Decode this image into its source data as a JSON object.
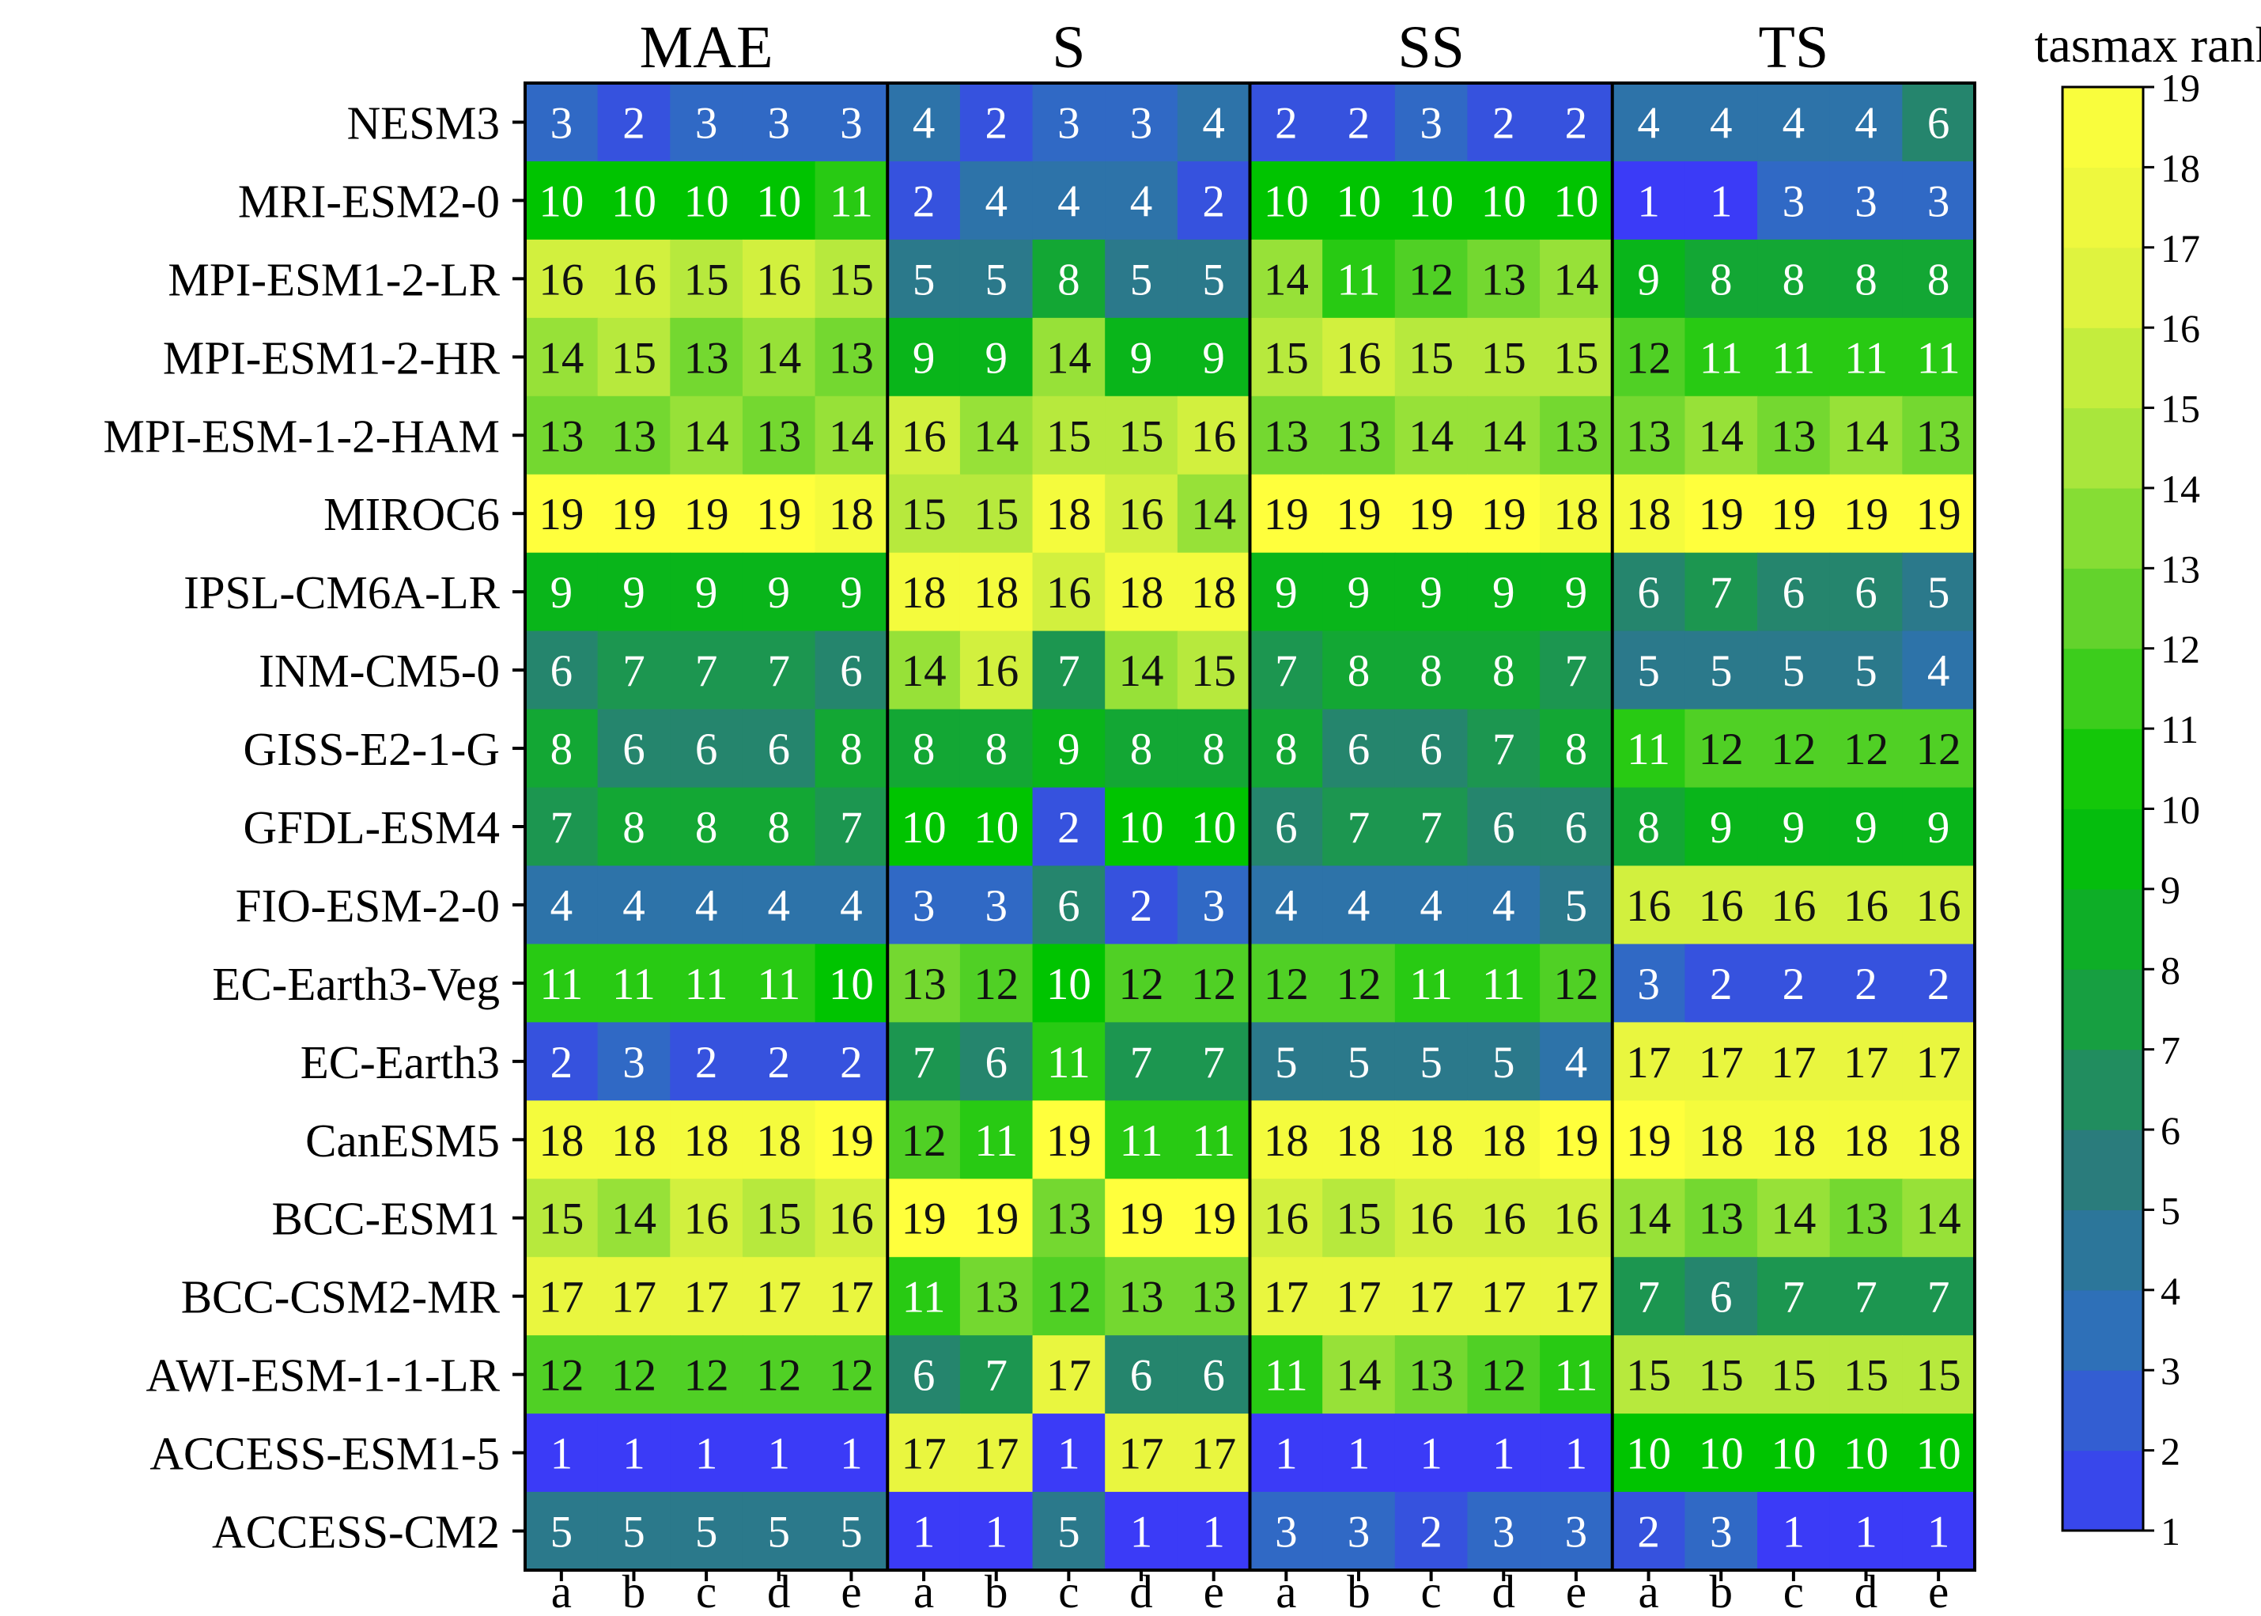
{
  "chart_data": {
    "type": "heatmap",
    "colorbar_label": "tasmax rank",
    "groups": [
      "MAE",
      "S",
      "SS",
      "TS"
    ],
    "sub_columns": [
      "a",
      "b",
      "c",
      "d",
      "e"
    ],
    "models": [
      "NESM3",
      "MRI-ESM2-0",
      "MPI-ESM1-2-LR",
      "MPI-ESM1-2-HR",
      "MPI-ESM-1-2-HAM",
      "MIROC6",
      "IPSL-CM6A-LR",
      "INM-CM5-0",
      "GISS-E2-1-G",
      "GFDL-ESM4",
      "FIO-ESM-2-0",
      "EC-Earth3-Veg",
      "EC-Earth3",
      "CanESM5",
      "BCC-ESM1",
      "BCC-CSM2-MR",
      "AWI-ESM-1-1-LR",
      "ACCESS-ESM1-5",
      "ACCESS-CM2"
    ],
    "values": [
      [
        3,
        2,
        3,
        3,
        3,
        4,
        2,
        3,
        3,
        4,
        2,
        2,
        3,
        2,
        2,
        4,
        4,
        4,
        4,
        6
      ],
      [
        10,
        10,
        10,
        10,
        11,
        2,
        4,
        4,
        4,
        2,
        10,
        10,
        10,
        10,
        10,
        1,
        1,
        3,
        3,
        3
      ],
      [
        16,
        16,
        15,
        16,
        15,
        5,
        5,
        8,
        5,
        5,
        14,
        11,
        12,
        13,
        14,
        9,
        8,
        8,
        8,
        8
      ],
      [
        14,
        15,
        13,
        14,
        13,
        9,
        9,
        14,
        9,
        9,
        15,
        16,
        15,
        15,
        15,
        12,
        11,
        11,
        11,
        11
      ],
      [
        13,
        13,
        14,
        13,
        14,
        16,
        14,
        15,
        15,
        16,
        13,
        13,
        14,
        14,
        13,
        13,
        14,
        13,
        14,
        13
      ],
      [
        19,
        19,
        19,
        19,
        18,
        15,
        15,
        18,
        16,
        14,
        19,
        19,
        19,
        19,
        18,
        18,
        19,
        19,
        19,
        19
      ],
      [
        9,
        9,
        9,
        9,
        9,
        18,
        18,
        16,
        18,
        18,
        9,
        9,
        9,
        9,
        9,
        6,
        7,
        6,
        6,
        5
      ],
      [
        6,
        7,
        7,
        7,
        6,
        14,
        16,
        7,
        14,
        15,
        7,
        8,
        8,
        8,
        7,
        5,
        5,
        5,
        5,
        4
      ],
      [
        8,
        6,
        6,
        6,
        8,
        8,
        8,
        9,
        8,
        8,
        8,
        6,
        6,
        7,
        8,
        11,
        12,
        12,
        12,
        12
      ],
      [
        7,
        8,
        8,
        8,
        7,
        10,
        10,
        2,
        10,
        10,
        6,
        7,
        7,
        6,
        6,
        8,
        9,
        9,
        9,
        9
      ],
      [
        4,
        4,
        4,
        4,
        4,
        3,
        3,
        6,
        2,
        3,
        4,
        4,
        4,
        4,
        5,
        16,
        16,
        16,
        16,
        16
      ],
      [
        11,
        11,
        11,
        11,
        10,
        13,
        12,
        10,
        12,
        12,
        12,
        12,
        11,
        11,
        12,
        3,
        2,
        2,
        2,
        2
      ],
      [
        2,
        3,
        2,
        2,
        2,
        7,
        6,
        11,
        7,
        7,
        5,
        5,
        5,
        5,
        4,
        17,
        17,
        17,
        17,
        17
      ],
      [
        18,
        18,
        18,
        18,
        19,
        12,
        11,
        19,
        11,
        11,
        18,
        18,
        18,
        18,
        19,
        19,
        18,
        18,
        18,
        18
      ],
      [
        15,
        14,
        16,
        15,
        16,
        19,
        19,
        13,
        19,
        19,
        16,
        15,
        16,
        16,
        16,
        14,
        13,
        14,
        13,
        14
      ],
      [
        17,
        17,
        17,
        17,
        17,
        11,
        13,
        12,
        13,
        13,
        17,
        17,
        17,
        17,
        17,
        7,
        6,
        7,
        7,
        7
      ],
      [
        12,
        12,
        12,
        12,
        12,
        6,
        7,
        17,
        6,
        6,
        11,
        14,
        13,
        12,
        11,
        15,
        15,
        15,
        15,
        15
      ],
      [
        1,
        1,
        1,
        1,
        1,
        17,
        17,
        1,
        17,
        17,
        1,
        1,
        1,
        1,
        1,
        10,
        10,
        10,
        10,
        10
      ],
      [
        5,
        5,
        5,
        5,
        5,
        1,
        1,
        5,
        1,
        1,
        3,
        3,
        2,
        3,
        3,
        2,
        3,
        1,
        1,
        1
      ]
    ],
    "colorbar_ticks": [
      1,
      2,
      3,
      4,
      5,
      6,
      7,
      8,
      9,
      10,
      11,
      12,
      13,
      14,
      15,
      16,
      17,
      18,
      19
    ],
    "value_range": [
      1,
      19
    ],
    "colormap_anchors": [
      "#3b3bf7",
      "#2f6fbf",
      "#2a7c7c",
      "#15a33a",
      "#00c400",
      "#5ad12a",
      "#a9e63c",
      "#e6f53f",
      "#ffff3c"
    ]
  }
}
